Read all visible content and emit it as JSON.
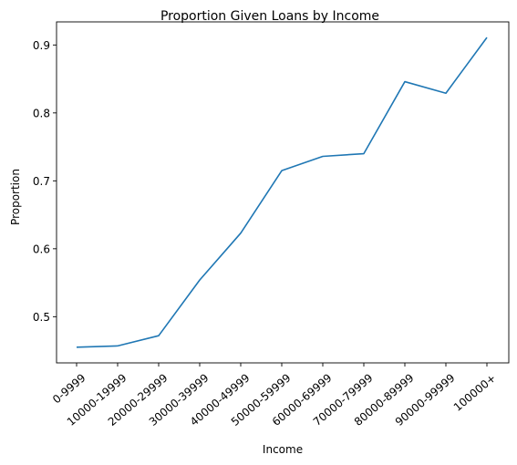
{
  "chart_data": {
    "type": "line",
    "title": "Proportion Given Loans by Income",
    "xlabel": "Income",
    "ylabel": "Proportion",
    "categories": [
      "0-9999",
      "10000-19999",
      "20000-29999",
      "30000-39999",
      "40000-49999",
      "50000-59999",
      "60000-69999",
      "70000-79999",
      "80000-89999",
      "90000-99999",
      "100000+"
    ],
    "values": [
      0.455,
      0.457,
      0.472,
      0.554,
      0.623,
      0.715,
      0.736,
      0.74,
      0.846,
      0.829,
      0.911
    ],
    "ylim": [
      0.432,
      0.934
    ],
    "yticks": [
      "0.5",
      "0.6",
      "0.7",
      "0.8",
      "0.9"
    ],
    "grid": false,
    "line_color": "#1f77b4"
  }
}
